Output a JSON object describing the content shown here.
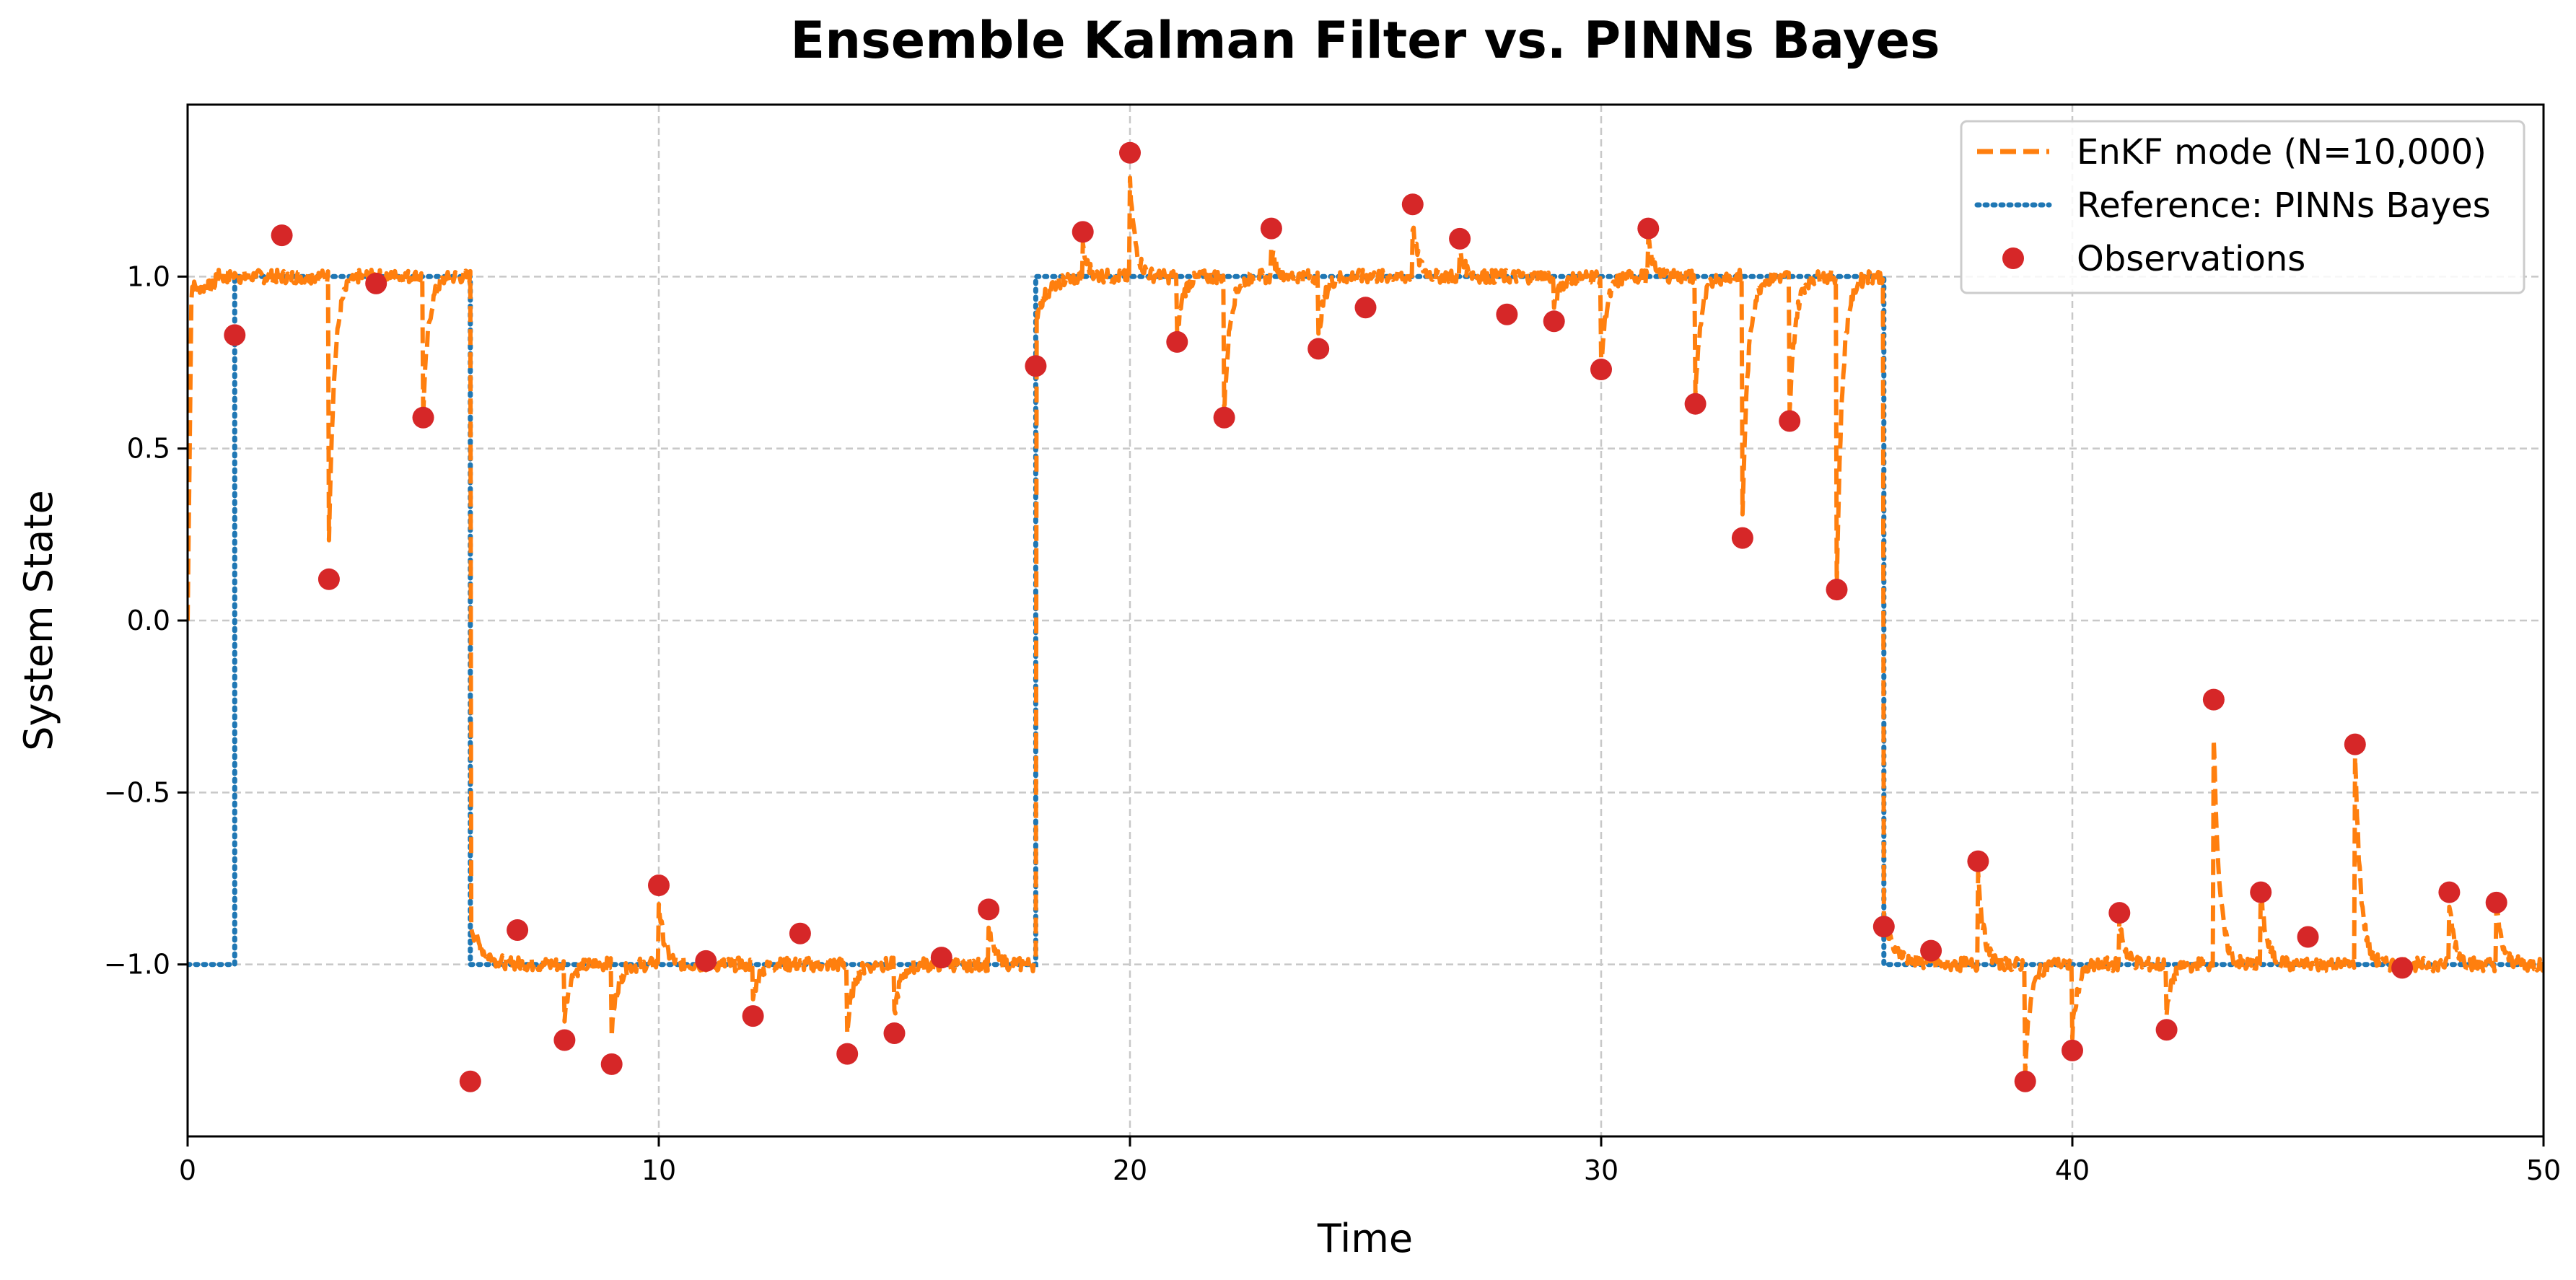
{
  "chart_data": {
    "type": "line",
    "title": "Ensemble Kalman Filter vs. PINNs Bayes",
    "xlabel": "Time",
    "ylabel": "System State",
    "xlim": [
      0,
      50
    ],
    "ylim": [
      -1.5,
      1.5
    ],
    "x_ticks": [
      0,
      10,
      20,
      30,
      40,
      50
    ],
    "x_tick_labels": [
      "0",
      "10",
      "20",
      "30",
      "40",
      "50"
    ],
    "y_ticks": [
      -1.0,
      -0.5,
      0.0,
      0.5,
      1.0
    ],
    "y_tick_labels": [
      "−1.0",
      "−0.5",
      "0.0",
      "0.5",
      "1.0"
    ],
    "grid": true,
    "legend_position": "top-right",
    "colors": {
      "enkf": "#ff7f0e",
      "reference": "#1f77b4",
      "observations": "#d62728"
    },
    "series": [
      {
        "name": "EnKF mode (N=10,000)",
        "style": "dashed",
        "description_points": "piecewise: starts 0 at t=0 rising to ~0.97, state +1 for t<6, -1 for 6<=t<18, +1 for 18<=t<36, -1 for t>=36, with transient spikes toward each observation",
        "spikes": [
          [
            3,
            0.25
          ],
          [
            5,
            0.6
          ],
          [
            8,
            -1.15
          ],
          [
            9,
            -1.2
          ],
          [
            10,
            -0.82
          ],
          [
            12,
            -1.1
          ],
          [
            14,
            -1.2
          ],
          [
            15,
            -1.15
          ],
          [
            17,
            -0.9
          ],
          [
            19,
            1.08
          ],
          [
            20,
            1.27
          ],
          [
            21,
            0.83
          ],
          [
            22,
            0.6
          ],
          [
            23,
            1.08
          ],
          [
            24,
            0.82
          ],
          [
            26,
            1.15
          ],
          [
            27,
            1.07
          ],
          [
            29,
            0.9
          ],
          [
            30,
            0.74
          ],
          [
            31,
            1.1
          ],
          [
            32,
            0.65
          ],
          [
            33,
            0.3
          ],
          [
            34,
            0.6
          ],
          [
            35,
            0.1
          ],
          [
            38,
            -0.73
          ],
          [
            39,
            -1.3
          ],
          [
            40,
            -1.2
          ],
          [
            41,
            -0.87
          ],
          [
            42,
            -1.15
          ],
          [
            43,
            -0.33
          ],
          [
            44,
            -0.78
          ],
          [
            46,
            -0.38
          ],
          [
            48,
            -0.82
          ],
          [
            49,
            -0.83
          ]
        ]
      },
      {
        "name": "Reference: PINNs Bayes",
        "style": "dotted",
        "segments": [
          [
            0,
            1,
            -1.0
          ],
          [
            1,
            6,
            1.0
          ],
          [
            6,
            18,
            -1.0
          ],
          [
            18,
            36,
            1.0
          ],
          [
            36,
            50,
            -1.0
          ]
        ]
      },
      {
        "name": "Observations",
        "style": "markers",
        "x": [
          1,
          2,
          3,
          4,
          5,
          6,
          7,
          8,
          9,
          10,
          11,
          12,
          13,
          14,
          15,
          16,
          17,
          18,
          19,
          20,
          21,
          22,
          23,
          24,
          25,
          26,
          27,
          28,
          29,
          30,
          31,
          32,
          33,
          34,
          35,
          36,
          37,
          38,
          39,
          40,
          41,
          42,
          43,
          44,
          45,
          46,
          47,
          48,
          49
        ],
        "y": [
          0.83,
          1.12,
          0.12,
          0.98,
          0.59,
          -1.34,
          -0.9,
          -1.22,
          -1.29,
          -0.77,
          -0.99,
          -1.15,
          -0.91,
          -1.26,
          -1.2,
          -0.98,
          -0.84,
          0.74,
          1.13,
          1.36,
          0.81,
          0.59,
          1.14,
          0.79,
          0.91,
          1.21,
          1.11,
          0.89,
          0.87,
          0.73,
          1.14,
          0.63,
          0.24,
          0.58,
          0.09,
          -0.89,
          -0.96,
          -0.7,
          -1.34,
          -1.25,
          -0.85,
          -1.19,
          -0.23,
          -0.79,
          -0.92,
          -0.36,
          -1.01,
          -0.79,
          -0.82
        ]
      }
    ]
  }
}
